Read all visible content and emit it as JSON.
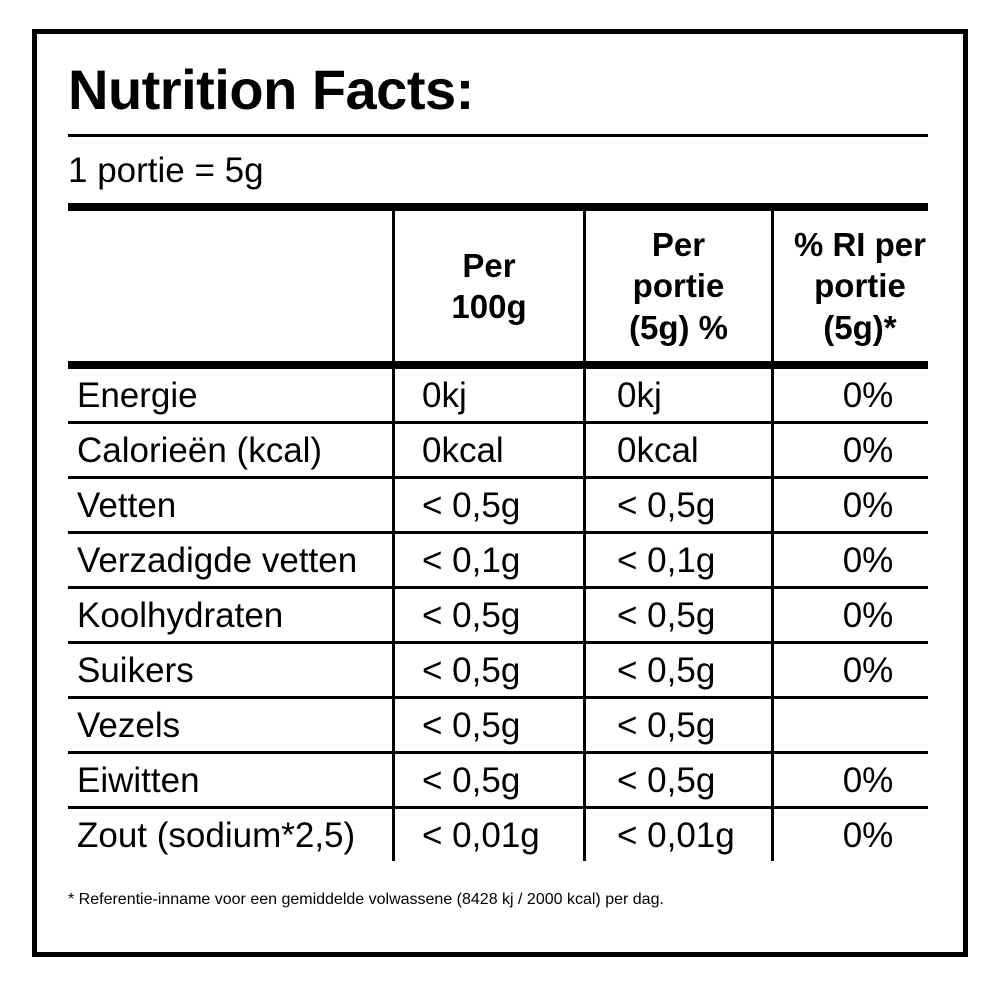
{
  "title": "Nutrition Facts:",
  "serving": "1 portie = 5g",
  "table": {
    "headers": [
      "",
      "Per 100g",
      "Per portie (5g) %",
      "% RI per portie (5g)*"
    ],
    "header_lines": [
      [],
      [
        "Per",
        "100g"
      ],
      [
        "Per",
        "portie",
        "(5g) %"
      ],
      [
        "% RI per",
        "portie",
        "(5g)*"
      ]
    ],
    "rows": [
      {
        "name": "Energie",
        "per100": "0kj",
        "perPortion": "0kj",
        "ri": "0%"
      },
      {
        "name": "Calorieën (kcal)",
        "per100": "0kcal",
        "perPortion": "0kcal",
        "ri": "0%"
      },
      {
        "name": "Vetten",
        "per100": "< 0,5g",
        "perPortion": "< 0,5g",
        "ri": "0%"
      },
      {
        "name": "Verzadigde vetten",
        "per100": "< 0,1g",
        "perPortion": "< 0,1g",
        "ri": "0%"
      },
      {
        "name": "Koolhydraten",
        "per100": "< 0,5g",
        "perPortion": "< 0,5g",
        "ri": "0%"
      },
      {
        "name": "Suikers",
        "per100": "< 0,5g",
        "perPortion": "< 0,5g",
        "ri": "0%"
      },
      {
        "name": "Vezels",
        "per100": "< 0,5g",
        "perPortion": "< 0,5g",
        "ri": ""
      },
      {
        "name": "Eiwitten",
        "per100": "< 0,5g",
        "perPortion": "< 0,5g",
        "ri": "0%"
      },
      {
        "name": "Zout (sodium*2,5)",
        "per100": "< 0,01g",
        "perPortion": "< 0,01g",
        "ri": "0%"
      }
    ]
  },
  "footnote": "* Referentie-inname voor een gemiddelde volwassene (8428 kj / 2000 kcal) per dag."
}
